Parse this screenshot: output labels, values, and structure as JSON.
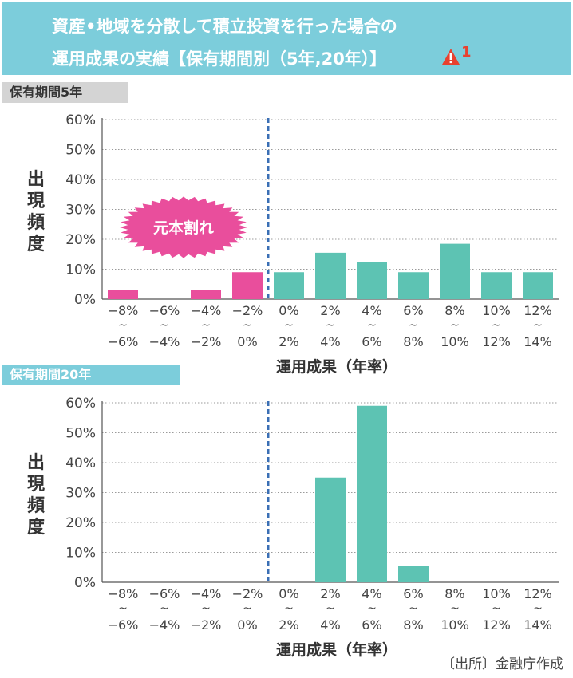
{
  "title": {
    "line1": "資産•地域を分散して積立投資を行った場合の",
    "line2": "運用成果の実績【保有期間別（5年,20年）】",
    "note_number": "1"
  },
  "colors": {
    "loss": "#e94e9c",
    "gain": "#5dc3b3",
    "title_bg": "#7ccddb",
    "breakeven_line": "#3a6fb5"
  },
  "icons": {
    "warning": "warning-icon"
  },
  "source": "〔出所〕金融庁作成",
  "chart_data": [
    {
      "type": "bar",
      "panel_label": "保有期間5年",
      "ylabel": "出現頻度",
      "xlabel": "運用成果（年率）",
      "yticks": [
        "0%",
        "10%",
        "20%",
        "30%",
        "40%",
        "50%",
        "60%"
      ],
      "ylim": [
        0,
        60
      ],
      "grid": true,
      "categories_top": [
        "−8%",
        "−6%",
        "−4%",
        "−2%",
        "0%",
        "2%",
        "4%",
        "6%",
        "8%",
        "10%",
        "12%"
      ],
      "categories_bottom": [
        "−6%",
        "−4%",
        "−2%",
        "0%",
        "2%",
        "4%",
        "6%",
        "8%",
        "10%",
        "12%",
        "14%"
      ],
      "values": [
        3,
        0,
        3,
        9,
        9,
        15.5,
        12.5,
        9,
        18.5,
        9,
        9
      ],
      "loss_categories": 4,
      "callout": "元本割れ"
    },
    {
      "type": "bar",
      "panel_label": "保有期間20年",
      "ylabel": "出現頻度",
      "xlabel": "運用成果（年率）",
      "yticks": [
        "0%",
        "10%",
        "20%",
        "30%",
        "40%",
        "50%",
        "60%"
      ],
      "ylim": [
        0,
        60
      ],
      "grid": true,
      "categories_top": [
        "−8%",
        "−6%",
        "−4%",
        "−2%",
        "0%",
        "2%",
        "4%",
        "6%",
        "8%",
        "10%",
        "12%"
      ],
      "categories_bottom": [
        "−6%",
        "−4%",
        "−2%",
        "0%",
        "2%",
        "4%",
        "6%",
        "8%",
        "10%",
        "12%",
        "14%"
      ],
      "values": [
        0,
        0,
        0,
        0,
        0,
        35,
        59,
        5.5,
        0,
        0,
        0
      ],
      "loss_categories": 4
    }
  ]
}
